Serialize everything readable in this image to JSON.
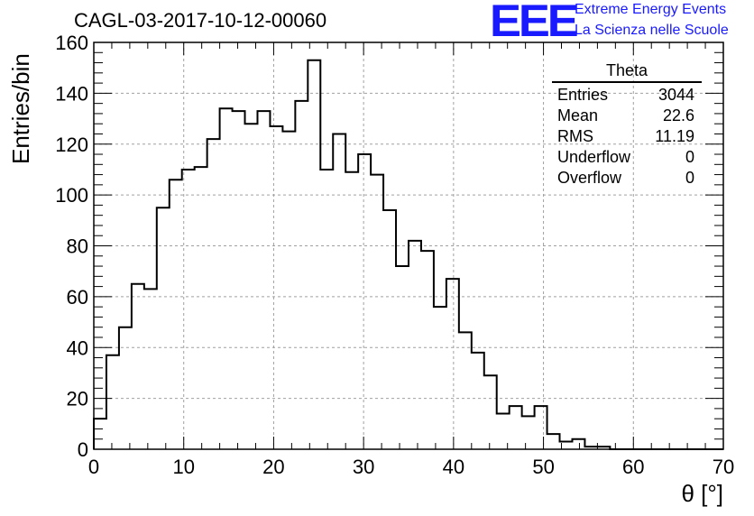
{
  "title": "CAGL-03-2017-10-12-00060",
  "logo": {
    "letters": "EEE",
    "line1": "Extreme Energy Events",
    "line2": "La Scienza nelle Scuole",
    "color": "#1a1aff"
  },
  "stats": {
    "title": "Theta",
    "rows": [
      {
        "label": "Entries",
        "value": "3044"
      },
      {
        "label": "Mean",
        "value": "22.6"
      },
      {
        "label": "RMS",
        "value": "11.19"
      },
      {
        "label": "Underflow",
        "value": "0"
      },
      {
        "label": "Overflow",
        "value": "0"
      }
    ]
  },
  "chart_data": {
    "type": "bar",
    "histogram": true,
    "title": "CAGL-03-2017-10-12-00060",
    "xlabel": "θ [°]",
    "ylabel": "Entries/bin",
    "xlim": [
      0,
      70
    ],
    "ylim": [
      0,
      160
    ],
    "xticks": [
      0,
      10,
      20,
      30,
      40,
      50,
      60,
      70
    ],
    "yticks": [
      0,
      20,
      40,
      60,
      80,
      100,
      120,
      140,
      160
    ],
    "grid": true,
    "bin_width": 1.4,
    "bin_edges_start": 0,
    "values": [
      12,
      37,
      48,
      65,
      63,
      95,
      106,
      110,
      111,
      122,
      134,
      133,
      128,
      133,
      127,
      125,
      137,
      153,
      110,
      124,
      109,
      116,
      108,
      94,
      72,
      82,
      78,
      56,
      67,
      46,
      38,
      29,
      14,
      17,
      13,
      17,
      6,
      3,
      4,
      1,
      1,
      0,
      0,
      0,
      0,
      0,
      0,
      0,
      0,
      0
    ]
  }
}
